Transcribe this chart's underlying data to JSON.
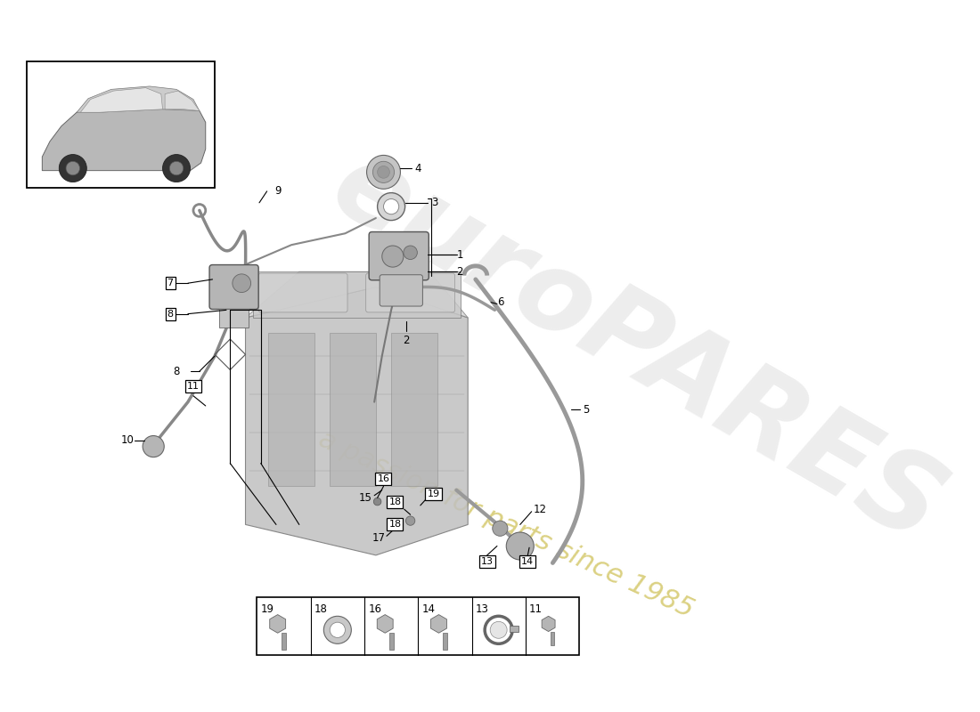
{
  "bg_color": "#ffffff",
  "watermark1": "euroPARES",
  "watermark2": "a passion for parts since 1985",
  "wm1_color": "#d4d4d4",
  "wm2_color": "#c8b840",
  "line_color": "#000000",
  "gray_light": "#d8d8d8",
  "gray_mid": "#b0b0b0",
  "gray_dark": "#888888",
  "bottom_labels": [
    "19",
    "18",
    "16",
    "14",
    "13",
    "11"
  ],
  "label_fontsize": 8.5
}
